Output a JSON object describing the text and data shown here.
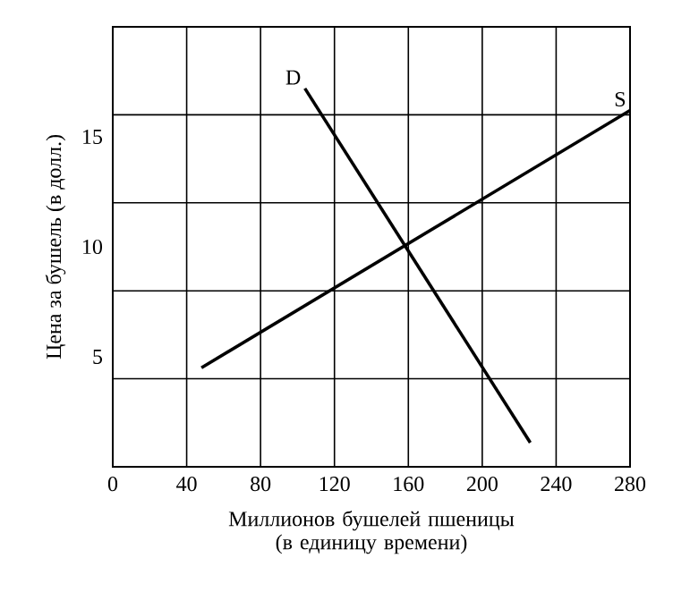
{
  "chart_data": {
    "type": "line",
    "xlabel": "Миллионов бушелей пшеницы (в единицу времени)",
    "ylabel": "Цена за бушель (в долл.)",
    "xlim": [
      0,
      280
    ],
    "xticks": [
      0,
      40,
      80,
      120,
      160,
      200,
      240,
      280
    ],
    "ylim": [
      0,
      20
    ],
    "yticks": [
      {
        "value": 4,
        "label": null
      },
      5,
      {
        "value": 8,
        "label": null
      },
      10,
      {
        "value": 12,
        "label": null
      },
      15,
      {
        "value": 16,
        "label": null
      }
    ],
    "grid": true,
    "marker": "none",
    "line_style": "solid",
    "series": [
      {
        "name": "D",
        "color": "#000000",
        "x": [
          104,
          226
        ],
        "values": [
          17.2,
          1.1
        ]
      },
      {
        "name": "S",
        "color": "#000000",
        "x": [
          48,
          280
        ],
        "values": [
          4.5,
          16.2
        ]
      }
    ]
  }
}
